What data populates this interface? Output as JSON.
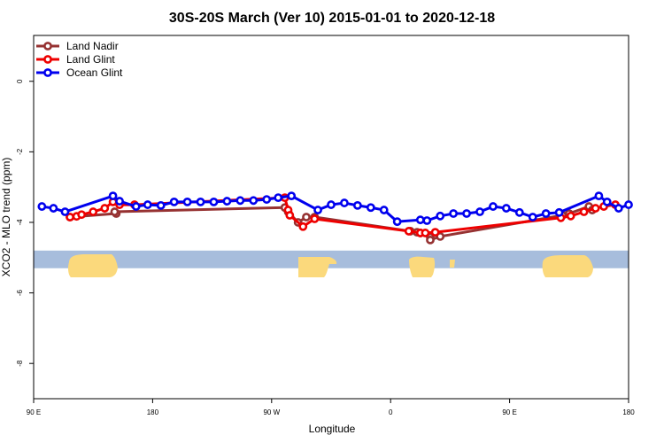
{
  "chart_data": {
    "type": "line",
    "title": "30S-20S March (Ver 10)   2015-01-01 to 2020-12-18",
    "xlabel": "Longitude",
    "ylabel": "XCO2 - MLO trend (ppm)",
    "xlim": [
      90,
      450
    ],
    "ylim": [
      -9.0,
      1.3
    ],
    "x_ticks": [
      {
        "value": 90,
        "label": "90 E"
      },
      {
        "value": 162,
        "label": "180"
      },
      {
        "value": 234,
        "label": "90 W"
      },
      {
        "value": 306,
        "label": "0"
      },
      {
        "value": 378,
        "label": "90 E"
      },
      {
        "value": 450,
        "label": "180"
      }
    ],
    "y_ticks": [
      {
        "value": 0,
        "label": "0"
      },
      {
        "value": -2,
        "label": "-2"
      },
      {
        "value": -4,
        "label": "-4"
      },
      {
        "value": -6,
        "label": "-6"
      },
      {
        "value": -8,
        "label": "-8"
      }
    ],
    "legend": {
      "position": "top-left"
    },
    "grid": false,
    "land_band": {
      "y_range": [
        -5.3,
        -4.8
      ],
      "ocean_color": "#a7bddc",
      "land_color": "#fbd97c"
    },
    "series": [
      {
        "name": "Land Nadir",
        "color": "#963232",
        "x": [
          112,
          140,
          139,
          242,
          244,
          250,
          255,
          260,
          318,
          322,
          324,
          330,
          330,
          336,
          410,
          414,
          426,
          428
        ],
        "y": [
          -3.85,
          -3.75,
          -3.7,
          -3.58,
          -3.7,
          -4.0,
          -3.85,
          -3.85,
          -4.25,
          -4.28,
          -4.3,
          -4.42,
          -4.5,
          -4.4,
          -3.8,
          -3.75,
          -3.55,
          -3.65
        ]
      },
      {
        "name": "Land Glint",
        "color": "#ee0000",
        "x": [
          112,
          116,
          119,
          126,
          133,
          138,
          142,
          151,
          242,
          244,
          245,
          253,
          260,
          317,
          324,
          327,
          333,
          409,
          415,
          423,
          430,
          435,
          442
        ],
        "y": [
          -3.85,
          -3.83,
          -3.78,
          -3.7,
          -3.6,
          -3.42,
          -3.5,
          -3.5,
          -3.3,
          -3.65,
          -3.8,
          -4.12,
          -3.9,
          -4.25,
          -4.3,
          -4.3,
          -4.28,
          -3.87,
          -3.82,
          -3.7,
          -3.6,
          -3.55,
          -3.5
        ]
      },
      {
        "name": "Ocean Glint",
        "color": "#0000ee",
        "x": [
          95,
          102,
          109,
          138,
          142,
          152,
          159,
          167,
          175,
          183,
          191,
          199,
          207,
          215,
          223,
          231,
          238,
          246,
          262,
          270,
          278,
          286,
          294,
          302,
          310,
          324,
          328,
          336,
          344,
          352,
          360,
          368,
          376,
          384,
          392,
          400,
          408,
          432,
          437,
          444,
          450
        ],
        "y": [
          -3.55,
          -3.6,
          -3.7,
          -3.25,
          -3.4,
          -3.55,
          -3.5,
          -3.52,
          -3.42,
          -3.42,
          -3.42,
          -3.42,
          -3.4,
          -3.38,
          -3.38,
          -3.35,
          -3.3,
          -3.25,
          -3.65,
          -3.5,
          -3.45,
          -3.52,
          -3.58,
          -3.65,
          -3.98,
          -3.93,
          -3.95,
          -3.82,
          -3.75,
          -3.75,
          -3.7,
          -3.55,
          -3.6,
          -3.72,
          -3.85,
          -3.75,
          -3.72,
          -3.25,
          -3.42,
          -3.6,
          -3.5
        ]
      }
    ]
  }
}
